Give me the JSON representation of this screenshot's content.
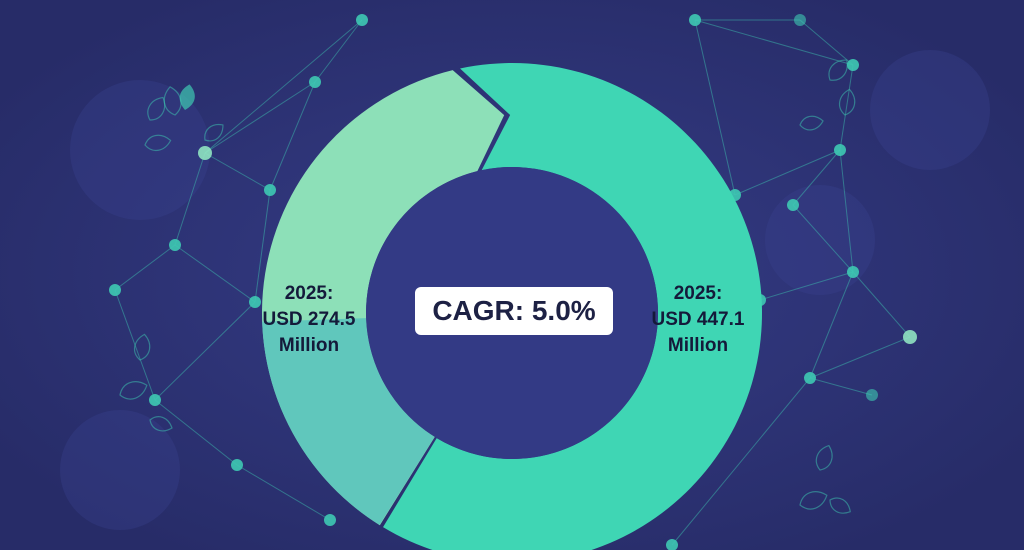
{
  "colors": {
    "background": "#2c3273",
    "network": "#3ec9b2",
    "segment_light": "#8de0b8",
    "segment_main": "#3fd6b4",
    "segment_overlap": "#5bc4bd"
  },
  "chart_data": {
    "type": "pie",
    "variant": "donut",
    "series": [
      {
        "label": "2025: USD 274.5 Million",
        "value": 274.5
      },
      {
        "label": "2025: USD 447.1 Million",
        "value": 447.1
      }
    ],
    "center_label": "CAGR: 5.0%",
    "legend": "none"
  },
  "labels": {
    "left": {
      "year": "2025:",
      "amount": "USD 274.5",
      "unit": "Million"
    },
    "right": {
      "year": "2025:",
      "amount": "USD 447.1",
      "unit": "Million"
    },
    "cagr": "CAGR: 5.0%"
  }
}
